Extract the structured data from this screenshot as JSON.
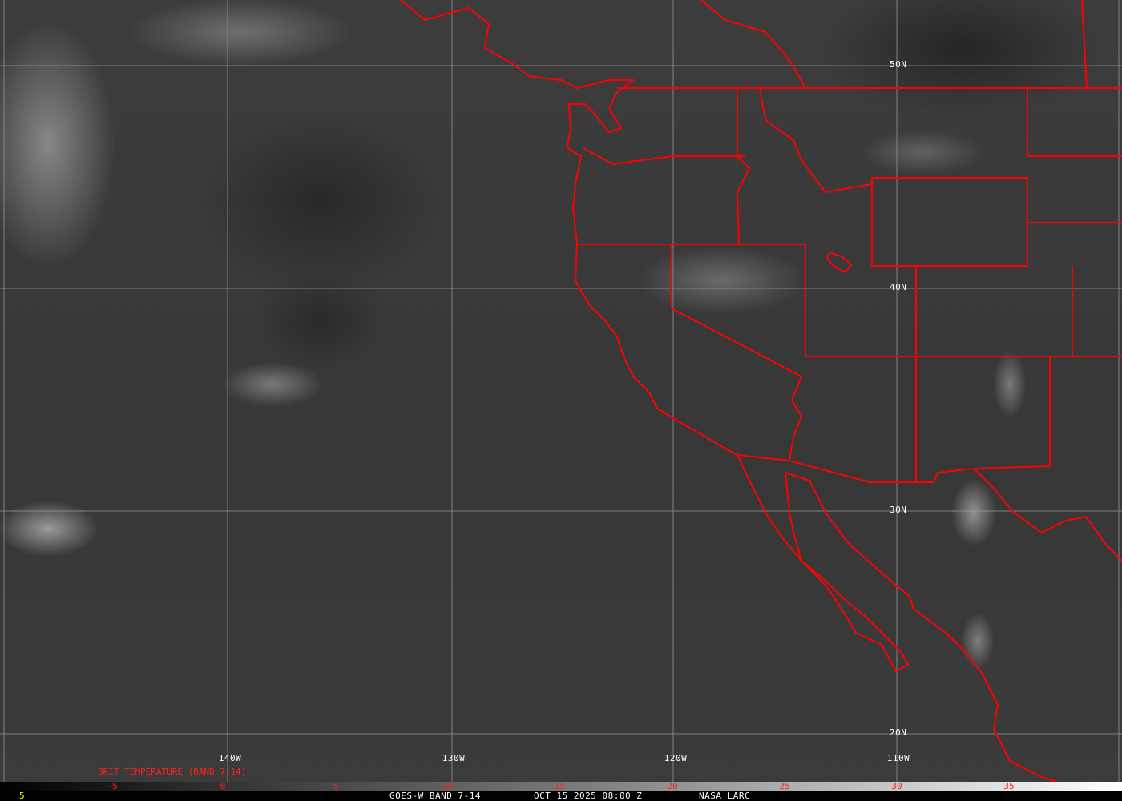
{
  "map": {
    "longitude_labels": [
      "140W",
      "130W",
      "120W",
      "110W"
    ],
    "latitude_labels": [
      "50N",
      "40N",
      "30N",
      "20N"
    ],
    "border_color": "#ff0000",
    "grid_color": "#9a9a9a"
  },
  "legend": {
    "title": "BRIT TEMPERATURE (BAND 7-14)",
    "ticks": [
      "-5",
      "0",
      "5",
      "10",
      "15",
      "20",
      "25",
      "30",
      "35"
    ],
    "tick_color": "#ff2020"
  },
  "footer": {
    "frame": "5",
    "satellite": "GOES-W BAND 7-14",
    "datetime": "OCT 15 2025 08:00 Z",
    "source": "NASA LARC"
  }
}
